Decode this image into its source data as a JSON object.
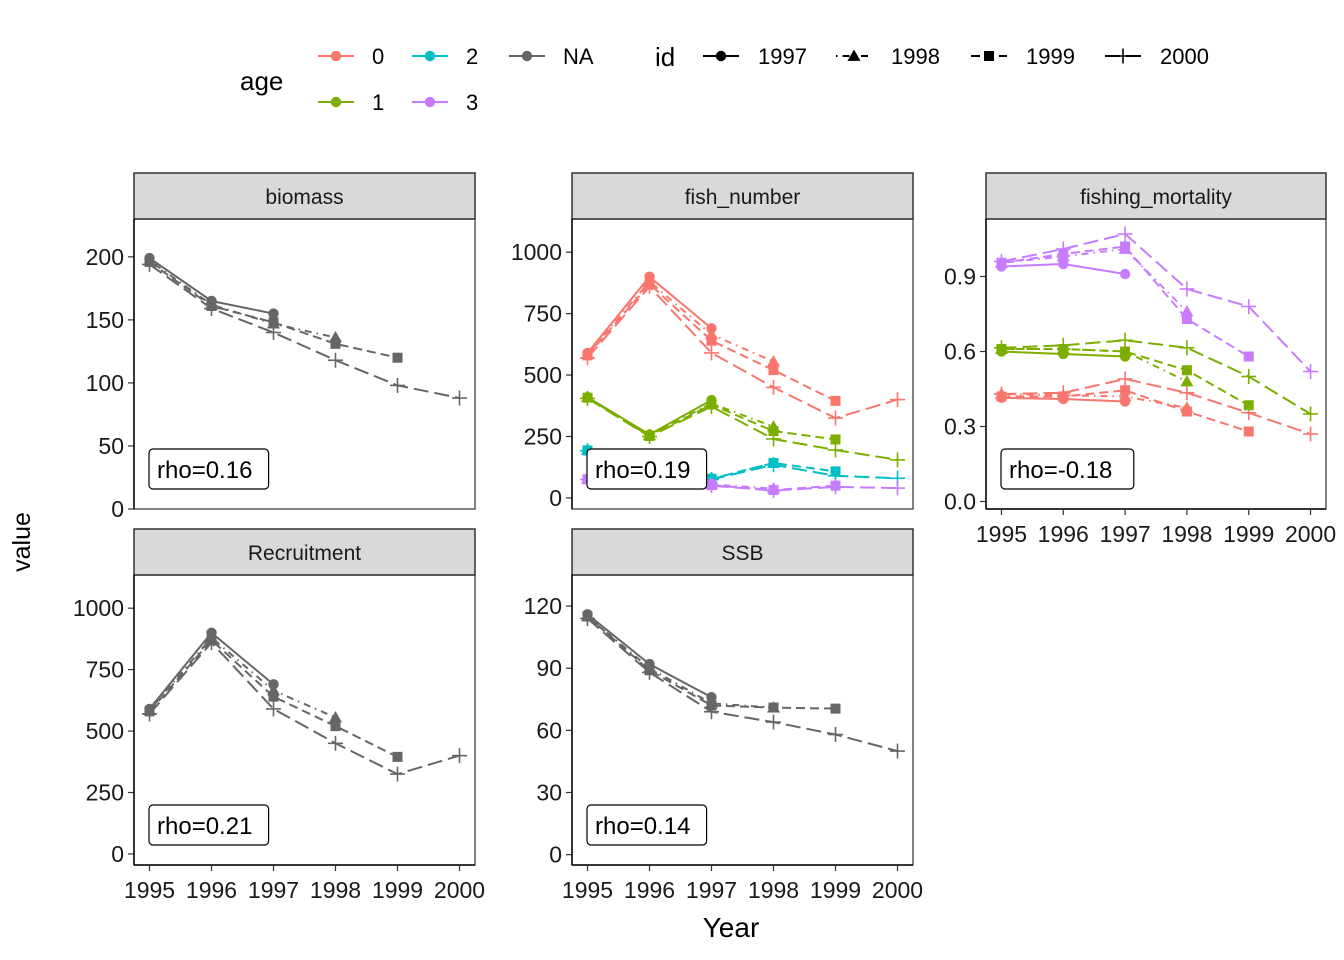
{
  "x_label": "Year",
  "y_label": "value",
  "legend": {
    "age": {
      "title": "age",
      "levels": [
        {
          "label": "0",
          "color": "#F8766D"
        },
        {
          "label": "1",
          "color": "#7CAE00"
        },
        {
          "label": "2",
          "color": "#00BFC4"
        },
        {
          "label": "3",
          "color": "#C77CFF"
        },
        {
          "label": "NA",
          "color": "#666666"
        }
      ]
    },
    "id": {
      "title": "id",
      "levels": [
        {
          "label": "1997",
          "linetype": "solid",
          "shape": "circle"
        },
        {
          "label": "1998",
          "linetype": "dotdash",
          "shape": "triangle"
        },
        {
          "label": "1999",
          "linetype": "dashed",
          "shape": "square"
        },
        {
          "label": "2000",
          "linetype": "longdash",
          "shape": "plus"
        }
      ]
    }
  },
  "chart_data": {
    "type": "line",
    "layout": "facet_wrap, free_y scales, 3 columns",
    "x_ticks": [
      "1995",
      "1996",
      "1997",
      "1998",
      "1999",
      "2000"
    ],
    "panels": [
      {
        "title": "biomass",
        "rho_label": "rho=0.16",
        "ylim": [
          0,
          230
        ],
        "y_ticks": [
          0,
          50,
          100,
          150,
          200
        ],
        "series": [
          {
            "age": "NA",
            "id": "1997",
            "x": [
              1995,
              1996,
              1997
            ],
            "y": [
              199,
              165,
              155
            ]
          },
          {
            "age": "NA",
            "id": "1998",
            "x": [
              1995,
              1996,
              1997,
              1998
            ],
            "y": [
              197,
              162,
              147,
              136
            ]
          },
          {
            "age": "NA",
            "id": "1999",
            "x": [
              1995,
              1996,
              1997,
              1998,
              1999
            ],
            "y": [
              196,
              161,
              148,
              131,
              120
            ]
          },
          {
            "age": "NA",
            "id": "2000",
            "x": [
              1995,
              1996,
              1997,
              1998,
              1999,
              2000
            ],
            "y": [
              194,
              159,
              140,
              118,
              98,
              88
            ]
          }
        ]
      },
      {
        "title": "fish_number",
        "rho_label": "rho=0.19",
        "ylim": [
          -45,
          1135
        ],
        "y_ticks": [
          0,
          250,
          500,
          750,
          1000
        ],
        "series": [
          {
            "age": "0",
            "id": "1997",
            "x": [
              1995,
              1996,
              1997
            ],
            "y": [
              590,
              900,
              690
            ]
          },
          {
            "age": "0",
            "id": "1998",
            "x": [
              1995,
              1996,
              1997,
              1998
            ],
            "y": [
              585,
              880,
              665,
              555
            ]
          },
          {
            "age": "0",
            "id": "1999",
            "x": [
              1995,
              1996,
              1997,
              1998,
              1999
            ],
            "y": [
              580,
              870,
              640,
              520,
              395
            ]
          },
          {
            "age": "0",
            "id": "2000",
            "x": [
              1995,
              1996,
              1997,
              1998,
              1999,
              2000
            ],
            "y": [
              570,
              860,
              590,
              450,
              325,
              400
            ]
          },
          {
            "age": "1",
            "id": "1997",
            "x": [
              1995,
              1996,
              1997
            ],
            "y": [
              410,
              258,
              398
            ]
          },
          {
            "age": "1",
            "id": "1998",
            "x": [
              1995,
              1996,
              1997,
              1998
            ],
            "y": [
              410,
              255,
              385,
              290
            ]
          },
          {
            "age": "1",
            "id": "1999",
            "x": [
              1995,
              1996,
              1997,
              1998,
              1999
            ],
            "y": [
              408,
              252,
              380,
              272,
              238
            ]
          },
          {
            "age": "1",
            "id": "2000",
            "x": [
              1995,
              1996,
              1997,
              1998,
              1999,
              2000
            ],
            "y": [
              405,
              250,
              372,
              240,
              195,
              155
            ]
          },
          {
            "age": "2",
            "id": "1997",
            "x": [
              1995,
              1996,
              1997
            ],
            "y": [
              195,
              152,
              80
            ]
          },
          {
            "age": "2",
            "id": "1998",
            "x": [
              1995,
              1996,
              1997,
              1998
            ],
            "y": [
              195,
              150,
              78,
              142
            ]
          },
          {
            "age": "2",
            "id": "1999",
            "x": [
              1995,
              1996,
              1997,
              1998,
              1999
            ],
            "y": [
              193,
              150,
              78,
              142,
              108
            ]
          },
          {
            "age": "2",
            "id": "2000",
            "x": [
              1995,
              1996,
              1997,
              1998,
              1999,
              2000
            ],
            "y": [
              192,
              148,
              75,
              135,
              90,
              80
            ]
          },
          {
            "age": "3",
            "id": "1997",
            "x": [
              1995,
              1996,
              1997
            ],
            "y": [
              78,
              70,
              58
            ]
          },
          {
            "age": "3",
            "id": "1998",
            "x": [
              1995,
              1996,
              1997,
              1998
            ],
            "y": [
              78,
              70,
              55,
              38
            ]
          },
          {
            "age": "3",
            "id": "1999",
            "x": [
              1995,
              1996,
              1997,
              1998,
              1999
            ],
            "y": [
              76,
              68,
              52,
              32,
              50
            ]
          },
          {
            "age": "3",
            "id": "2000",
            "x": [
              1995,
              1996,
              1997,
              1998,
              1999,
              2000
            ],
            "y": [
              75,
              66,
              50,
              30,
              45,
              40
            ]
          }
        ]
      },
      {
        "title": "fishing_mortality",
        "rho_label": "rho=-0.18",
        "ylim": [
          -0.03,
          1.13
        ],
        "y_ticks": [
          0.0,
          0.3,
          0.6,
          0.9
        ],
        "y_tick_labels": [
          "0.0",
          "0.3",
          "0.6",
          "0.9"
        ],
        "series": [
          {
            "age": "0",
            "id": "1997",
            "x": [
              1995,
              1996,
              1997
            ],
            "y": [
              0.415,
              0.41,
              0.4
            ]
          },
          {
            "age": "0",
            "id": "1998",
            "x": [
              1995,
              1996,
              1997,
              1998
            ],
            "y": [
              0.43,
              0.425,
              0.42,
              0.375
            ]
          },
          {
            "age": "0",
            "id": "1999",
            "x": [
              1995,
              1996,
              1997,
              1998,
              1999
            ],
            "y": [
              0.42,
              0.42,
              0.445,
              0.36,
              0.28
            ]
          },
          {
            "age": "0",
            "id": "2000",
            "x": [
              1995,
              1996,
              1997,
              1998,
              1999,
              2000
            ],
            "y": [
              0.43,
              0.435,
              0.49,
              0.435,
              0.355,
              0.27
            ]
          },
          {
            "age": "1",
            "id": "1997",
            "x": [
              1995,
              1996,
              1997
            ],
            "y": [
              0.6,
              0.59,
              0.58
            ]
          },
          {
            "age": "1",
            "id": "1998",
            "x": [
              1995,
              1996,
              1997,
              1998
            ],
            "y": [
              0.61,
              0.61,
              0.6,
              0.48
            ]
          },
          {
            "age": "1",
            "id": "1999",
            "x": [
              1995,
              1996,
              1997,
              1998,
              1999
            ],
            "y": [
              0.61,
              0.61,
              0.6,
              0.525,
              0.385
            ]
          },
          {
            "age": "1",
            "id": "2000",
            "x": [
              1995,
              1996,
              1997,
              1998,
              1999,
              2000
            ],
            "y": [
              0.615,
              0.625,
              0.645,
              0.615,
              0.5,
              0.35
            ]
          },
          {
            "age": "3",
            "id": "1997",
            "x": [
              1995,
              1996,
              1997
            ],
            "y": [
              0.94,
              0.95,
              0.91
            ]
          },
          {
            "age": "3",
            "id": "1998",
            "x": [
              1995,
              1996,
              1997,
              1998
            ],
            "y": [
              0.955,
              0.98,
              1.01,
              0.76
            ]
          },
          {
            "age": "3",
            "id": "1999",
            "x": [
              1995,
              1996,
              1997,
              1998,
              1999
            ],
            "y": [
              0.955,
              0.99,
              1.02,
              0.73,
              0.58
            ]
          },
          {
            "age": "3",
            "id": "2000",
            "x": [
              1995,
              1996,
              1997,
              1998,
              1999,
              2000
            ],
            "y": [
              0.96,
              1.01,
              1.07,
              0.85,
              0.78,
              0.52
            ]
          }
        ]
      },
      {
        "title": "Recruitment",
        "rho_label": "rho=0.21",
        "ylim": [
          -45,
          1135
        ],
        "y_ticks": [
          0,
          250,
          500,
          750,
          1000
        ],
        "series": [
          {
            "age": "NA",
            "id": "1997",
            "x": [
              1995,
              1996,
              1997
            ],
            "y": [
              590,
              900,
              690
            ]
          },
          {
            "age": "NA",
            "id": "1998",
            "x": [
              1995,
              1996,
              1997,
              1998
            ],
            "y": [
              585,
              880,
              665,
              555
            ]
          },
          {
            "age": "NA",
            "id": "1999",
            "x": [
              1995,
              1996,
              1997,
              1998,
              1999
            ],
            "y": [
              580,
              870,
              640,
              520,
              395
            ]
          },
          {
            "age": "NA",
            "id": "2000",
            "x": [
              1995,
              1996,
              1997,
              1998,
              1999,
              2000
            ],
            "y": [
              570,
              860,
              590,
              450,
              325,
              400
            ]
          }
        ]
      },
      {
        "title": "SSB",
        "rho_label": "rho=0.14",
        "ylim": [
          -5,
          135
        ],
        "y_ticks": [
          0,
          30,
          60,
          90,
          120
        ],
        "series": [
          {
            "age": "NA",
            "id": "1997",
            "x": [
              1995,
              1996,
              1997
            ],
            "y": [
              116,
              92,
              76
            ]
          },
          {
            "age": "NA",
            "id": "1998",
            "x": [
              1995,
              1996,
              1997,
              1998
            ],
            "y": [
              115,
              90,
              73,
              71
            ]
          },
          {
            "age": "NA",
            "id": "1999",
            "x": [
              1995,
              1996,
              1997,
              1998,
              1999
            ],
            "y": [
              115,
              89,
              72,
              71,
              70.5
            ]
          },
          {
            "age": "NA",
            "id": "2000",
            "x": [
              1995,
              1996,
              1997,
              1998,
              1999,
              2000
            ],
            "y": [
              114,
              88,
              69,
              64,
              58,
              50
            ]
          }
        ]
      }
    ]
  }
}
